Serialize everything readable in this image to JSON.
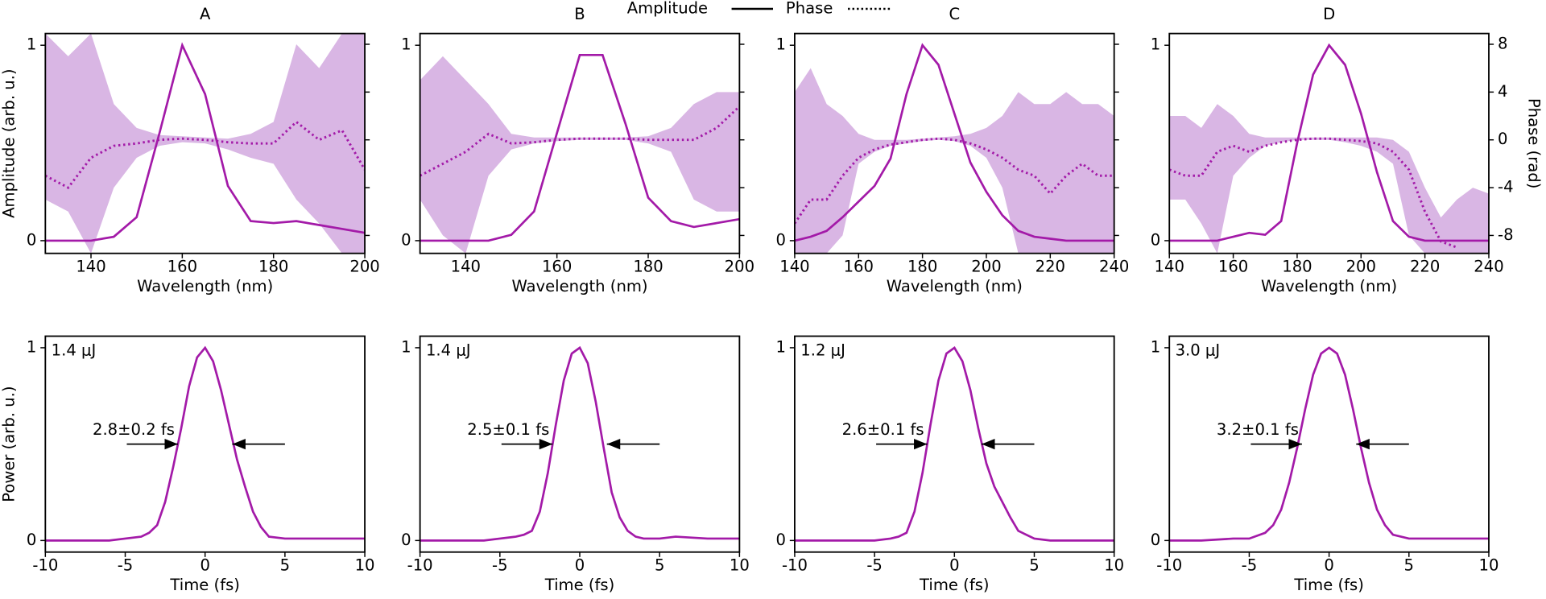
{
  "chart_data": [
    {
      "type": "line",
      "title": "A",
      "xlabel": "Wavelength (nm)",
      "ylabel": "Amplitude (arb. u.)",
      "x": [
        130,
        135,
        140,
        145,
        150,
        155,
        160,
        165,
        170,
        175,
        180,
        185,
        190,
        195,
        200
      ],
      "series": [
        {
          "name": "Amplitude",
          "color": "#a31aa8",
          "values": [
            0,
            0,
            0,
            0.02,
            0.12,
            0.55,
            1,
            0.75,
            0.28,
            0.1,
            0.09,
            0.1,
            0.08,
            0.06,
            0.04
          ]
        },
        {
          "name": "Phase",
          "color": "#a31aa8",
          "style": "dotted",
          "axis": "y2",
          "band_color": "#d9b6e4",
          "values": [
            -3,
            -4,
            -1.5,
            -0.5,
            -0.3,
            0,
            0.1,
            0,
            -0.2,
            -0.3,
            -0.3,
            1.5,
            0,
            0.8,
            -2.5
          ],
          "lower": [
            -5,
            -6,
            -9.5,
            -4,
            -1.5,
            -0.5,
            -0.2,
            -0.3,
            -0.8,
            -1.5,
            -2,
            -5,
            -7,
            -9.5,
            -9.5
          ],
          "upper": [
            8.9,
            7,
            8.9,
            3,
            1,
            0.4,
            0.3,
            0.2,
            0.1,
            0.5,
            1.5,
            8,
            6,
            8.9,
            8.9
          ]
        }
      ],
      "xlim": [
        130,
        200
      ],
      "xticks": [
        140,
        160,
        180,
        200
      ],
      "ylim": [
        -0.065,
        1.06
      ],
      "yticks": [
        0,
        1
      ],
      "y2lim": [
        -9.5,
        8.9
      ],
      "y2ticks": [
        -8,
        -4,
        0,
        4,
        8
      ]
    },
    {
      "type": "line",
      "title": "B",
      "xlabel": "Wavelength (nm)",
      "x": [
        130,
        135,
        140,
        145,
        150,
        155,
        160,
        165,
        170,
        175,
        180,
        185,
        190,
        195,
        200
      ],
      "series": [
        {
          "color": "#a31aa8",
          "values": [
            0,
            0,
            0,
            0,
            0.03,
            0.15,
            0.55,
            0.95,
            0.95,
            0.6,
            0.22,
            0.1,
            0.07,
            0.09,
            0.11
          ]
        },
        {
          "color": "#a31aa8",
          "style": "dotted",
          "axis": "y2",
          "band_color": "#d9b6e4",
          "values": [
            -3,
            -2,
            -1,
            0.5,
            -0.3,
            -0.2,
            0,
            0.1,
            0.1,
            0.1,
            0,
            0,
            0,
            1,
            2.8
          ],
          "lower": [
            -5,
            -8,
            -9.5,
            -3,
            -0.8,
            -0.3,
            -0.1,
            0,
            0,
            0,
            -0.3,
            -1,
            -5,
            -6,
            -6
          ],
          "upper": [
            5,
            7,
            5,
            3,
            0.5,
            0.2,
            0.2,
            0.2,
            0.2,
            0.2,
            0.3,
            1,
            3,
            4,
            4
          ]
        }
      ],
      "xlim": [
        130,
        200
      ],
      "xticks": [
        140,
        160,
        180,
        200
      ],
      "ylim": [
        -0.065,
        1.06
      ],
      "yticks": [
        0,
        1
      ],
      "y2lim": [
        -9.5,
        8.9
      ],
      "y2ticks": [
        -8,
        -4,
        0,
        4,
        8
      ]
    },
    {
      "type": "line",
      "title": "C",
      "xlabel": "Wavelength (nm)",
      "x": [
        140,
        145,
        150,
        155,
        160,
        165,
        170,
        175,
        180,
        185,
        190,
        195,
        200,
        205,
        210,
        215,
        220,
        225,
        230,
        235,
        240
      ],
      "series": [
        {
          "color": "#a31aa8",
          "values": [
            0,
            0.02,
            0.05,
            0.12,
            0.2,
            0.28,
            0.42,
            0.75,
            1,
            0.9,
            0.65,
            0.4,
            0.25,
            0.13,
            0.05,
            0.02,
            0.01,
            0,
            0,
            0,
            0
          ]
        },
        {
          "color": "#a31aa8",
          "style": "dotted",
          "axis": "y2",
          "band_color": "#d9b6e4",
          "values": [
            -7,
            -5,
            -5,
            -3,
            -1.5,
            -0.8,
            -0.4,
            -0.2,
            0,
            0.1,
            0,
            -0.3,
            -0.8,
            -1.5,
            -2.5,
            -3,
            -4.5,
            -3,
            -2,
            -3,
            -3
          ],
          "lower": [
            -9.5,
            -9.5,
            -9.5,
            -8,
            -2,
            -1,
            -0.5,
            -0.3,
            -0.1,
            0,
            -0.1,
            -0.5,
            -1.5,
            -4,
            -9.5,
            -9.5,
            -9.5,
            -9.5,
            -9.5,
            -9.5,
            -9.5
          ],
          "upper": [
            4,
            6,
            3,
            2,
            0.5,
            0,
            0,
            0,
            0.1,
            0.2,
            0.3,
            0.5,
            1,
            2,
            4,
            3,
            3,
            4,
            3,
            3,
            2
          ]
        }
      ],
      "xlim": [
        140,
        240
      ],
      "xticks": [
        140,
        160,
        180,
        200,
        220,
        240
      ],
      "ylim": [
        -0.065,
        1.06
      ],
      "yticks": [
        0,
        1
      ],
      "y2lim": [
        -9.5,
        8.9
      ],
      "y2ticks": [
        -8,
        -4,
        0,
        4,
        8
      ]
    },
    {
      "type": "line",
      "title": "D",
      "xlabel": "Wavelength (nm)",
      "y2label": "Phase (rad)",
      "x": [
        140,
        145,
        150,
        155,
        160,
        165,
        170,
        175,
        180,
        185,
        190,
        195,
        200,
        205,
        210,
        215,
        220,
        225,
        230,
        235,
        240
      ],
      "series": [
        {
          "color": "#a31aa8",
          "values": [
            0,
            0,
            0,
            0,
            0.02,
            0.04,
            0.03,
            0.1,
            0.5,
            0.85,
            1,
            0.9,
            0.65,
            0.35,
            0.1,
            0.02,
            0,
            0,
            0,
            0,
            0
          ]
        },
        {
          "color": "#a31aa8",
          "style": "dotted",
          "axis": "y2",
          "band_color": "#d9b6e4",
          "values": [
            -2.5,
            -3,
            -3,
            -1,
            -0.5,
            -1,
            -0.5,
            -0.2,
            0,
            0.1,
            0.1,
            0,
            -0.1,
            -0.3,
            -1,
            -2.5,
            -6,
            -8.5,
            -9,
            null,
            null
          ],
          "lower": [
            -5,
            -5,
            -7,
            -9.5,
            -3,
            -1.5,
            -0.5,
            -0.2,
            0,
            0,
            0,
            -0.2,
            -0.5,
            -1,
            -2,
            -8,
            -9.5,
            -9.5,
            -9.5,
            -9.5,
            -9.5
          ],
          "upper": [
            2,
            2,
            1,
            3,
            2,
            0.5,
            0.2,
            0.2,
            0.2,
            0.2,
            0.2,
            0.2,
            0.2,
            0.2,
            0,
            -1,
            -4,
            -6.5,
            -5,
            -4,
            -4.5
          ]
        }
      ],
      "xlim": [
        140,
        240
      ],
      "xticks": [
        140,
        160,
        180,
        200,
        220,
        240
      ],
      "ylim": [
        -0.065,
        1.06
      ],
      "yticks": [
        0,
        1
      ],
      "y2lim": [
        -9.5,
        8.9
      ],
      "y2ticks": [
        -8,
        -4,
        0,
        4,
        8
      ]
    },
    {
      "type": "pulse",
      "xlabel": "Time (fs)",
      "ylabel": "Power (arb. u.)",
      "energy": "1.4 μJ",
      "fwhm": "2.8±0.2 fs",
      "x": [
        -10,
        -8,
        -6,
        -5,
        -4,
        -3.5,
        -3,
        -2.5,
        -2,
        -1.5,
        -1,
        -0.5,
        0,
        0.5,
        1,
        1.5,
        2,
        2.5,
        3,
        3.5,
        4,
        5,
        6,
        8,
        10
      ],
      "series": [
        {
          "color": "#a31aa8",
          "values": [
            0,
            0,
            0,
            0.01,
            0.02,
            0.04,
            0.08,
            0.2,
            0.38,
            0.58,
            0.8,
            0.95,
            1,
            0.93,
            0.78,
            0.6,
            0.42,
            0.28,
            0.15,
            0.07,
            0.02,
            0.01,
            0.01,
            0.01,
            0.01
          ]
        }
      ],
      "xlim": [
        -10,
        10
      ],
      "xticks": [
        -10,
        -5,
        0,
        5,
        10
      ],
      "ylim": [
        -0.06,
        1.06
      ],
      "yticks": [
        0,
        1
      ]
    },
    {
      "type": "pulse",
      "xlabel": "Time (fs)",
      "energy": "1.4 μJ",
      "fwhm": "2.5±0.1 fs",
      "x": [
        -10,
        -8,
        -6,
        -5,
        -4,
        -3.5,
        -3,
        -2.5,
        -2,
        -1.5,
        -1,
        -0.5,
        0,
        0.5,
        1,
        1.5,
        2,
        2.5,
        3,
        3.5,
        4,
        5,
        6,
        8,
        10
      ],
      "series": [
        {
          "color": "#a31aa8",
          "values": [
            0,
            0,
            0,
            0.01,
            0.02,
            0.03,
            0.05,
            0.15,
            0.35,
            0.6,
            0.83,
            0.97,
            1,
            0.92,
            0.72,
            0.48,
            0.25,
            0.12,
            0.05,
            0.02,
            0.01,
            0.01,
            0.02,
            0.01,
            0.01
          ]
        }
      ],
      "xlim": [
        -10,
        10
      ],
      "xticks": [
        -10,
        -5,
        0,
        5,
        10
      ],
      "ylim": [
        -0.06,
        1.06
      ],
      "yticks": [
        0,
        1
      ]
    },
    {
      "type": "pulse",
      "xlabel": "Time (fs)",
      "energy": "1.2 μJ",
      "fwhm": "2.6±0.1 fs",
      "x": [
        -10,
        -8,
        -6,
        -5,
        -4,
        -3.5,
        -3,
        -2.5,
        -2,
        -1.5,
        -1,
        -0.5,
        0,
        0.5,
        1,
        1.5,
        2,
        2.5,
        3,
        3.5,
        4,
        5,
        6,
        8,
        10
      ],
      "series": [
        {
          "color": "#a31aa8",
          "values": [
            0,
            0,
            0,
            0,
            0.01,
            0.02,
            0.04,
            0.15,
            0.35,
            0.6,
            0.83,
            0.97,
            1,
            0.93,
            0.78,
            0.58,
            0.4,
            0.28,
            0.2,
            0.12,
            0.05,
            0.01,
            0,
            0,
            0
          ]
        }
      ],
      "xlim": [
        -10,
        10
      ],
      "xticks": [
        -10,
        -5,
        0,
        5,
        10
      ],
      "ylim": [
        -0.06,
        1.06
      ],
      "yticks": [
        0,
        1
      ]
    },
    {
      "type": "pulse",
      "xlabel": "Time (fs)",
      "energy": "3.0 μJ",
      "fwhm": "3.2±0.1 fs",
      "x": [
        -10,
        -8,
        -6,
        -5,
        -4,
        -3.5,
        -3,
        -2.5,
        -2,
        -1.5,
        -1,
        -0.5,
        0,
        0.5,
        1,
        1.5,
        2,
        2.5,
        3,
        3.5,
        4,
        5,
        6,
        8,
        10
      ],
      "series": [
        {
          "color": "#a31aa8",
          "values": [
            0,
            0,
            0.01,
            0.01,
            0.04,
            0.08,
            0.16,
            0.3,
            0.48,
            0.68,
            0.86,
            0.97,
            1,
            0.97,
            0.86,
            0.68,
            0.48,
            0.3,
            0.16,
            0.08,
            0.03,
            0.01,
            0.01,
            0.01,
            0.01
          ]
        }
      ],
      "xlim": [
        -10,
        10
      ],
      "xticks": [
        -10,
        -5,
        0,
        5,
        10
      ],
      "ylim": [
        -0.06,
        1.06
      ],
      "yticks": [
        0,
        1
      ]
    }
  ]
}
